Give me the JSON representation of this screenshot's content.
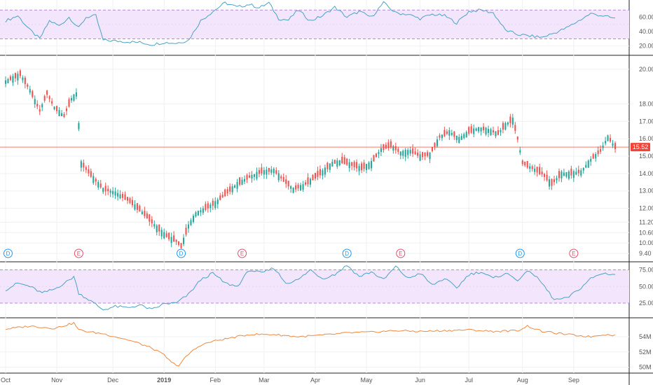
{
  "chart_data": {
    "type": "candlestick",
    "x_ticks": [
      "Oct",
      "Nov",
      "Dec",
      "2019",
      "Feb",
      "Mar",
      "Apr",
      "May",
      "Jun",
      "Jul",
      "Aug",
      "Sep"
    ],
    "last_price": "15.52",
    "panes": [
      {
        "name": "oscillator-top",
        "type": "line",
        "y_ticks": [
          "60.00",
          "40.00",
          "20.00"
        ],
        "ylim": [
          10,
          82
        ],
        "band": [
          30,
          70
        ],
        "anchors": [
          [
            0,
            55
          ],
          [
            5,
            62
          ],
          [
            10,
            42
          ],
          [
            14,
            30
          ],
          [
            18,
            55
          ],
          [
            22,
            48
          ],
          [
            26,
            60
          ],
          [
            30,
            45
          ],
          [
            33,
            60
          ],
          [
            37,
            62
          ],
          [
            40,
            28
          ],
          [
            45,
            27
          ],
          [
            50,
            26
          ],
          [
            55,
            25
          ],
          [
            60,
            22
          ],
          [
            65,
            25
          ],
          [
            70,
            24
          ],
          [
            75,
            28
          ],
          [
            80,
            55
          ],
          [
            85,
            68
          ],
          [
            90,
            80
          ],
          [
            95,
            74
          ],
          [
            100,
            78
          ],
          [
            104,
            73
          ],
          [
            108,
            80
          ],
          [
            112,
            58
          ],
          [
            116,
            56
          ],
          [
            120,
            70
          ],
          [
            125,
            55
          ],
          [
            130,
            62
          ],
          [
            135,
            74
          ],
          [
            140,
            60
          ],
          [
            145,
            68
          ],
          [
            150,
            60
          ],
          [
            155,
            80
          ],
          [
            160,
            66
          ],
          [
            165,
            64
          ],
          [
            170,
            58
          ],
          [
            175,
            64
          ],
          [
            180,
            62
          ],
          [
            185,
            52
          ],
          [
            190,
            68
          ],
          [
            195,
            70
          ],
          [
            200,
            66
          ],
          [
            205,
            42
          ],
          [
            210,
            36
          ],
          [
            215,
            34
          ],
          [
            220,
            32
          ],
          [
            225,
            38
          ],
          [
            230,
            45
          ],
          [
            235,
            55
          ],
          [
            240,
            65
          ],
          [
            245,
            62
          ],
          [
            250,
            58
          ]
        ],
        "n": 250
      },
      {
        "name": "price",
        "type": "candlestick",
        "y_ticks": [
          "20.00",
          "18.00",
          "17.00",
          "16.00",
          "15.00",
          "14.00",
          "13.00",
          "12.00",
          "11.20",
          "10.60",
          "10.00",
          "9.40"
        ],
        "ylim": [
          9.0,
          20.6
        ],
        "anchors": [
          [
            0,
            19.3
          ],
          [
            6,
            19.7
          ],
          [
            10,
            18.8
          ],
          [
            14,
            17.6
          ],
          [
            17,
            18.6
          ],
          [
            20,
            17.8
          ],
          [
            24,
            17.3
          ],
          [
            27,
            18.3
          ],
          [
            29,
            18.6
          ],
          [
            30,
            16.8
          ],
          [
            31,
            14.6
          ],
          [
            35,
            13.9
          ],
          [
            40,
            13.1
          ],
          [
            45,
            12.9
          ],
          [
            50,
            12.5
          ],
          [
            55,
            11.9
          ],
          [
            58,
            11.5
          ],
          [
            62,
            10.9
          ],
          [
            66,
            10.4
          ],
          [
            70,
            10.1
          ],
          [
            72,
            9.8
          ],
          [
            75,
            11.0
          ],
          [
            78,
            11.7
          ],
          [
            82,
            12.0
          ],
          [
            86,
            12.3
          ],
          [
            90,
            12.8
          ],
          [
            95,
            13.4
          ],
          [
            100,
            13.8
          ],
          [
            105,
            14.1
          ],
          [
            110,
            14.2
          ],
          [
            114,
            13.6
          ],
          [
            118,
            13.1
          ],
          [
            122,
            13.3
          ],
          [
            126,
            13.7
          ],
          [
            130,
            14.1
          ],
          [
            134,
            14.6
          ],
          [
            138,
            14.7
          ],
          [
            142,
            14.5
          ],
          [
            146,
            14.3
          ],
          [
            150,
            14.6
          ],
          [
            154,
            15.4
          ],
          [
            158,
            15.6
          ],
          [
            162,
            15.2
          ],
          [
            166,
            15.3
          ],
          [
            170,
            15.0
          ],
          [
            174,
            15.1
          ],
          [
            178,
            16.1
          ],
          [
            182,
            16.4
          ],
          [
            186,
            16.0
          ],
          [
            190,
            16.4
          ],
          [
            194,
            16.6
          ],
          [
            198,
            16.5
          ],
          [
            202,
            16.3
          ],
          [
            205,
            16.8
          ],
          [
            208,
            17.1
          ],
          [
            210,
            16.0
          ],
          [
            212,
            14.6
          ],
          [
            216,
            14.3
          ],
          [
            220,
            14.0
          ],
          [
            224,
            13.4
          ],
          [
            228,
            14.0
          ],
          [
            232,
            14.0
          ],
          [
            236,
            14.1
          ],
          [
            240,
            14.8
          ],
          [
            244,
            15.3
          ],
          [
            247,
            16.1
          ],
          [
            250,
            15.5
          ]
        ],
        "n": 250,
        "event_markers": [
          {
            "label": "D",
            "at": 1
          },
          {
            "label": "E",
            "at": 30
          },
          {
            "label": "D",
            "at": 72
          },
          {
            "label": "E",
            "at": 97
          },
          {
            "label": "D",
            "at": 140
          },
          {
            "label": "E",
            "at": 162
          },
          {
            "label": "D",
            "at": 211
          },
          {
            "label": "E",
            "at": 233
          }
        ]
      },
      {
        "name": "oscillator-middle",
        "type": "line",
        "y_ticks": [
          "75.00",
          "50.00",
          "25.00"
        ],
        "ylim": [
          5,
          85
        ],
        "band": [
          25,
          75
        ],
        "anchors": [
          [
            0,
            45
          ],
          [
            5,
            55
          ],
          [
            10,
            50
          ],
          [
            15,
            40
          ],
          [
            20,
            46
          ],
          [
            25,
            57
          ],
          [
            28,
            65
          ],
          [
            30,
            40
          ],
          [
            35,
            28
          ],
          [
            40,
            15
          ],
          [
            45,
            20
          ],
          [
            50,
            18
          ],
          [
            55,
            22
          ],
          [
            60,
            15
          ],
          [
            65,
            24
          ],
          [
            70,
            25
          ],
          [
            75,
            38
          ],
          [
            80,
            60
          ],
          [
            85,
            70
          ],
          [
            90,
            55
          ],
          [
            95,
            50
          ],
          [
            100,
            75
          ],
          [
            105,
            70
          ],
          [
            110,
            78
          ],
          [
            115,
            55
          ],
          [
            120,
            60
          ],
          [
            125,
            75
          ],
          [
            130,
            62
          ],
          [
            135,
            68
          ],
          [
            140,
            82
          ],
          [
            145,
            65
          ],
          [
            150,
            72
          ],
          [
            155,
            60
          ],
          [
            160,
            80
          ],
          [
            165,
            62
          ],
          [
            170,
            70
          ],
          [
            175,
            52
          ],
          [
            180,
            62
          ],
          [
            185,
            48
          ],
          [
            190,
            68
          ],
          [
            195,
            72
          ],
          [
            200,
            62
          ],
          [
            205,
            70
          ],
          [
            210,
            60
          ],
          [
            215,
            74
          ],
          [
            220,
            55
          ],
          [
            225,
            30
          ],
          [
            230,
            32
          ],
          [
            235,
            45
          ],
          [
            240,
            62
          ],
          [
            245,
            70
          ],
          [
            250,
            68
          ]
        ],
        "n": 250
      },
      {
        "name": "volume-indicator",
        "type": "line",
        "y_ticks": [
          "54M",
          "52M",
          "50M"
        ],
        "ylim": [
          49.5,
          56.3
        ],
        "anchors": [
          [
            0,
            55.0
          ],
          [
            10,
            55.4
          ],
          [
            20,
            55.1
          ],
          [
            28,
            55.8
          ],
          [
            30,
            54.9
          ],
          [
            35,
            54.6
          ],
          [
            40,
            54.4
          ],
          [
            45,
            54.0
          ],
          [
            50,
            53.6
          ],
          [
            55,
            53.1
          ],
          [
            60,
            52.5
          ],
          [
            65,
            51.6
          ],
          [
            68,
            50.6
          ],
          [
            71,
            50.2
          ],
          [
            73,
            51.0
          ],
          [
            76,
            52.0
          ],
          [
            80,
            52.9
          ],
          [
            85,
            53.4
          ],
          [
            90,
            53.7
          ],
          [
            95,
            54.0
          ],
          [
            100,
            54.3
          ],
          [
            110,
            54.3
          ],
          [
            120,
            54.0
          ],
          [
            130,
            54.2
          ],
          [
            140,
            54.5
          ],
          [
            150,
            54.6
          ],
          [
            160,
            54.8
          ],
          [
            170,
            54.7
          ],
          [
            180,
            54.8
          ],
          [
            190,
            54.9
          ],
          [
            200,
            54.7
          ],
          [
            210,
            54.8
          ],
          [
            214,
            55.4
          ],
          [
            220,
            54.7
          ],
          [
            230,
            54.3
          ],
          [
            240,
            54.0
          ],
          [
            245,
            54.3
          ],
          [
            250,
            54.2
          ]
        ],
        "n": 250
      }
    ],
    "colors": {
      "up": "#26a69a",
      "down": "#ef5350",
      "osc_line": "#4aa3c4",
      "vol_line": "#f0883e",
      "band_fill": "#f3e6fc",
      "band_edge": "#b48ad6",
      "price_line": "#f44336",
      "dividend": "#2196f3",
      "earnings": "#e0506a"
    },
    "grid": true
  }
}
